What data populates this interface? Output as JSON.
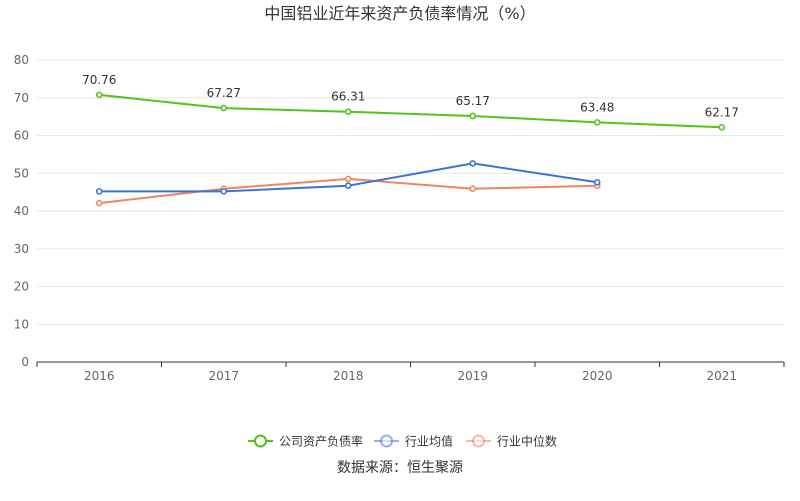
{
  "chart_data": {
    "type": "line",
    "title": "中国铝业近年来资产负债率情况（%）",
    "categories": [
      "2016",
      "2017",
      "2018",
      "2019",
      "2020",
      "2021"
    ],
    "ylim": [
      0,
      80
    ],
    "yticks": [
      0,
      10,
      20,
      30,
      40,
      50,
      60,
      70,
      80
    ],
    "grid": true,
    "legend_position": "bottom",
    "series": [
      {
        "name": "公司资产负债率",
        "color": "#52c41a",
        "values": [
          70.76,
          67.27,
          66.31,
          65.17,
          63.48,
          62.17
        ],
        "show_labels": true
      },
      {
        "name": "行业均值",
        "color": "#3b73db",
        "values": [
          45.2,
          45.2,
          46.7,
          52.6,
          47.6,
          null
        ],
        "show_labels": false
      },
      {
        "name": "行业中位数",
        "color": "#f0845b",
        "values": [
          42.1,
          45.9,
          48.5,
          45.9,
          46.7,
          null
        ],
        "show_labels": false
      }
    ],
    "source": "数据来源：恒生聚源"
  }
}
